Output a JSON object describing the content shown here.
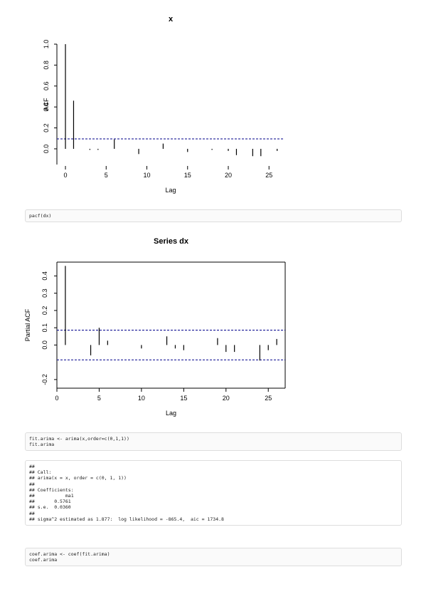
{
  "chart_data": [
    {
      "type": "acf",
      "title": "x",
      "x_label": "Lag",
      "y_label": "ACF",
      "x": [
        0,
        1,
        3,
        4,
        6,
        9,
        12,
        15,
        18,
        20,
        21,
        23,
        24,
        26
      ],
      "values": [
        1.0,
        0.46,
        -0.01,
        -0.01,
        0.09,
        -0.05,
        0.05,
        -0.03,
        -0.01,
        -0.02,
        -0.06,
        -0.07,
        -0.07,
        -0.02
      ],
      "color": "#000000",
      "ci": [
        0.095
      ],
      "ci_color": "#00008b",
      "xlim": [
        -1.05,
        26.9
      ],
      "ylim": [
        -0.15,
        1.0
      ],
      "xticks": [
        0,
        5,
        10,
        15,
        20,
        25
      ],
      "yticks": [
        {
          "value": 0,
          "label": "0.0"
        },
        0.2,
        0.4,
        0.6,
        0.8,
        {
          "value": 1,
          "label": "1.0"
        }
      ],
      "box": false
    },
    {
      "type": "acf",
      "title": "Series  dx",
      "x_label": "Lag",
      "y_label": "Partial ACF",
      "x": [
        1,
        4,
        5,
        6,
        10,
        13,
        14,
        15,
        19,
        20,
        21,
        24,
        25,
        26
      ],
      "values": [
        0.458,
        -0.06,
        0.1,
        0.025,
        -0.02,
        0.05,
        -0.02,
        -0.03,
        0.04,
        -0.04,
        -0.04,
        -0.09,
        -0.03,
        0.035
      ],
      "color": "#000000",
      "ci": [
        0.086,
        -0.086
      ],
      "ci_color": "#00008b",
      "xlim": [
        0,
        27
      ],
      "ylim": [
        -0.25,
        0.48
      ],
      "xticks": [
        0,
        5,
        10,
        15,
        20,
        25
      ],
      "yticks": [
        -0.2,
        {
          "value": 0,
          "label": "0.0"
        },
        0.1,
        0.2,
        0.3,
        0.4
      ],
      "box": true
    }
  ],
  "blocks": [
    {
      "kind": "code",
      "lines": [
        "pacf(dx)"
      ]
    },
    {
      "kind": "code",
      "lines": [
        "fit.arima <- arima(x,order=c(0,1,1))",
        "fit.arima"
      ]
    },
    {
      "kind": "output",
      "lines": [
        "##",
        "## Call:",
        "## arima(x = x, order = c(0, 1, 1))",
        "##",
        "## Coefficients:",
        "##           ma1",
        "##       0.5761",
        "## s.e.  0.0360",
        "##",
        "## sigma^2 estimated as 1.877:  log likelihood = -865.4,  aic = 1734.8"
      ]
    },
    {
      "kind": "code",
      "lines": [
        "coef.arima <- coef(fit.arima)",
        "coef.arima"
      ]
    }
  ]
}
